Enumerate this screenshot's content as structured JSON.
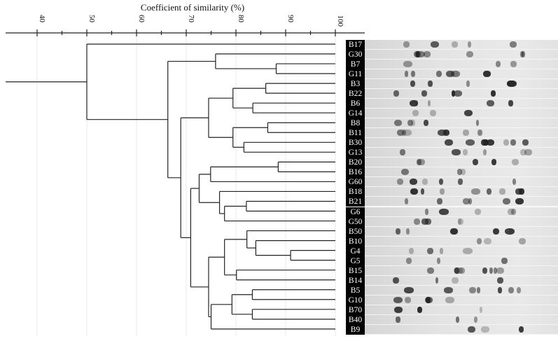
{
  "chart_data": {
    "type": "dendrogram",
    "title": "Coefficient of similarity (%)",
    "axis": {
      "min": 40,
      "max": 100,
      "major_ticks": [
        40,
        50,
        60,
        70,
        80,
        90,
        100
      ],
      "minor_step": 5
    },
    "leaves": [
      "B17",
      "G30",
      "B7",
      "G11",
      "B3",
      "B22",
      "B6",
      "G14",
      "B8",
      "B11",
      "B30",
      "G13",
      "B20",
      "B16",
      "G60",
      "B18",
      "B21",
      "G6",
      "G50",
      "B50",
      "B10",
      "G4",
      "G5",
      "B15",
      "B14",
      "B5",
      "G10",
      "B70",
      "B40",
      "B9"
    ],
    "tree": {
      "sim": 50.0,
      "children": [
        "B17",
        {
          "sim": 66.3,
          "children": [
            {
              "sim": 75.9,
              "children": [
                "G30",
                {
                  "sim": 88.1,
                  "children": [
                    "B7",
                    "G11"
                  ]
                }
              ]
            },
            {
              "sim": 68.9,
              "children": [
                {
                  "sim": 74.5,
                  "children": [
                    {
                      "sim": 79.4,
                      "children": [
                        {
                          "sim": 86.0,
                          "children": [
                            "B3",
                            "B22"
                          ]
                        },
                        {
                          "sim": 83.4,
                          "children": [
                            "B6",
                            "G14"
                          ]
                        }
                      ]
                    },
                    {
                      "sim": 79.4,
                      "children": [
                        {
                          "sim": 86.4,
                          "children": [
                            "B8",
                            "B11"
                          ]
                        },
                        {
                          "sim": 81.6,
                          "children": [
                            "B30",
                            "G13"
                          ]
                        }
                      ]
                    }
                  ]
                },
                {
                  "sim": 70.9,
                  "children": [
                    {
                      "sim": 72.6,
                      "children": [
                        {
                          "sim": 74.9,
                          "children": [
                            {
                              "sim": 88.5,
                              "children": [
                                "B20",
                                "B16"
                              ]
                            },
                            "G60"
                          ]
                        },
                        {
                          "sim": 76.7,
                          "children": [
                            "B18",
                            {
                              "sim": 77.7,
                              "children": [
                                {
                                  "sim": 82.1,
                                  "children": [
                                    "B21",
                                    "G6"
                                  ]
                                },
                                "G50"
                              ]
                            }
                          ]
                        }
                      ]
                    },
                    {
                      "sim": 74.5,
                      "children": [
                        {
                          "sim": 77.7,
                          "children": [
                            {
                              "sim": 82.2,
                              "children": [
                                "B50",
                                {
                                  "sim": 84.0,
                                  "children": [
                                    "B10",
                                    {
                                      "sim": 91.0,
                                      "children": [
                                        "G4",
                                        "G5"
                                      ]
                                    }
                                  ]
                                }
                              ]
                            },
                            {
                              "sim": 80.1,
                              "children": [
                                "B15",
                                "B14"
                              ]
                            }
                          ]
                        },
                        {
                          "sim": 75.0,
                          "children": [
                            {
                              "sim": 79.2,
                              "children": [
                                {
                                  "sim": 83.3,
                                  "children": [
                                    "B5",
                                    "G10"
                                  ]
                                },
                                {
                                  "sim": 83.3,
                                  "children": [
                                    "B70",
                                    "B40"
                                  ]
                                }
                              ]
                            },
                            "B9"
                          ]
                        }
                      ]
                    }
                  ]
                }
              ]
            }
          ]
        }
      ]
    }
  }
}
